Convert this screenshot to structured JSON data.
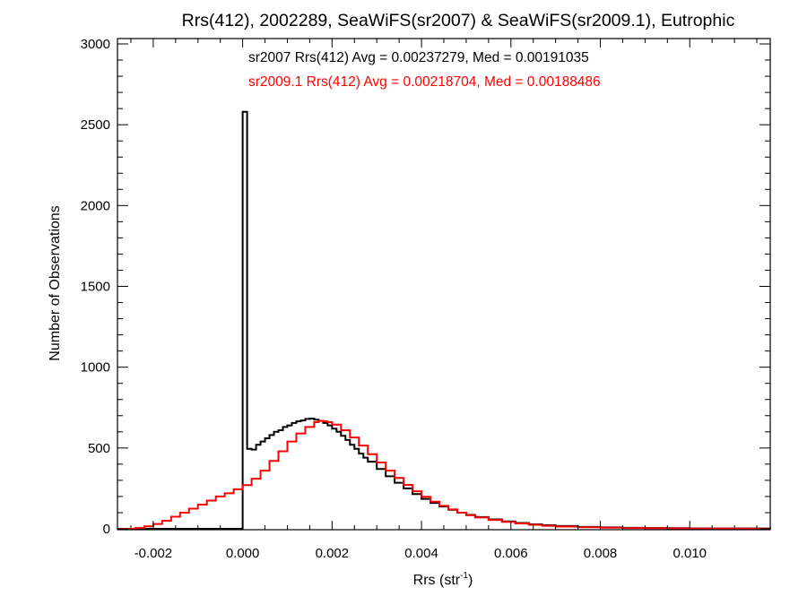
{
  "chart_data": {
    "type": "histogram-step",
    "title": "Rrs(412), 2002289, SeaWiFS(sr2007) & SeaWiFS(sr2009.1), Eutrophic",
    "xlabel": "Rrs (str",
    "xlabel_sup": "-1",
    "xlabel_close": ")",
    "ylabel": "Number of Observations",
    "xlim": [
      -0.0028,
      0.0118
    ],
    "ylim": [
      0,
      3000
    ],
    "x_ticks": [
      -0.002,
      0.0,
      0.002,
      0.004,
      0.006,
      0.008,
      0.01
    ],
    "x_tick_labels": [
      "-0.002",
      "0.000",
      "0.002",
      "0.004",
      "0.006",
      "0.008",
      "0.010"
    ],
    "y_ticks": [
      0,
      500,
      1000,
      1500,
      2000,
      2500,
      3000
    ],
    "y_tick_labels": [
      "0",
      "500",
      "1000",
      "1500",
      "2000",
      "2500",
      "3000"
    ],
    "grid": false,
    "annotations": [
      {
        "text": "sr2007 Rrs(412) Avg = 0.00237279, Med = 0.00191035",
        "color": "#000000"
      },
      {
        "text": "sr2009.1 Rrs(412) Avg = 0.00218704, Med = 0.00188486",
        "color": "#ff0000"
      }
    ],
    "series": [
      {
        "name": "sr2007",
        "color": "#000000",
        "points": [
          [
            -0.0028,
            0
          ],
          [
            -0.0001,
            0
          ],
          [
            0.0,
            2580
          ],
          [
            0.0001,
            495
          ],
          [
            0.0002,
            490
          ],
          [
            0.0003,
            520
          ],
          [
            0.0004,
            540
          ],
          [
            0.0005,
            560
          ],
          [
            0.0006,
            580
          ],
          [
            0.0007,
            600
          ],
          [
            0.0008,
            610
          ],
          [
            0.0009,
            630
          ],
          [
            0.001,
            640
          ],
          [
            0.0011,
            655
          ],
          [
            0.0012,
            665
          ],
          [
            0.0013,
            670
          ],
          [
            0.0014,
            680
          ],
          [
            0.0015,
            682
          ],
          [
            0.0016,
            675
          ],
          [
            0.0017,
            668
          ],
          [
            0.0018,
            655
          ],
          [
            0.0019,
            640
          ],
          [
            0.002,
            620
          ],
          [
            0.0021,
            600
          ],
          [
            0.0022,
            575
          ],
          [
            0.0023,
            550
          ],
          [
            0.0024,
            520
          ],
          [
            0.0025,
            495
          ],
          [
            0.0026,
            465
          ],
          [
            0.0027,
            440
          ],
          [
            0.0028,
            415
          ],
          [
            0.003,
            370
          ],
          [
            0.0032,
            325
          ],
          [
            0.0034,
            285
          ],
          [
            0.0036,
            250
          ],
          [
            0.0038,
            215
          ],
          [
            0.004,
            185
          ],
          [
            0.0042,
            160
          ],
          [
            0.0044,
            138
          ],
          [
            0.0046,
            118
          ],
          [
            0.0048,
            100
          ],
          [
            0.005,
            86
          ],
          [
            0.0052,
            73
          ],
          [
            0.0055,
            58
          ],
          [
            0.0058,
            46
          ],
          [
            0.0061,
            36
          ],
          [
            0.0064,
            28
          ],
          [
            0.0067,
            22
          ],
          [
            0.007,
            17
          ],
          [
            0.0075,
            12
          ],
          [
            0.008,
            9
          ],
          [
            0.0085,
            6
          ],
          [
            0.009,
            5
          ],
          [
            0.0095,
            4
          ],
          [
            0.01,
            3
          ],
          [
            0.0105,
            2
          ],
          [
            0.011,
            2
          ],
          [
            0.0118,
            1
          ]
        ]
      },
      {
        "name": "sr2009.1",
        "color": "#ff0000",
        "points": [
          [
            -0.0028,
            0
          ],
          [
            -0.0024,
            5
          ],
          [
            -0.0022,
            15
          ],
          [
            -0.002,
            30
          ],
          [
            -0.0018,
            50
          ],
          [
            -0.0016,
            75
          ],
          [
            -0.0014,
            100
          ],
          [
            -0.0012,
            125
          ],
          [
            -0.001,
            150
          ],
          [
            -0.0008,
            175
          ],
          [
            -0.0006,
            200
          ],
          [
            -0.0004,
            220
          ],
          [
            -0.0002,
            245
          ],
          [
            0.0,
            270
          ],
          [
            0.0002,
            310
          ],
          [
            0.0004,
            360
          ],
          [
            0.0006,
            420
          ],
          [
            0.0008,
            480
          ],
          [
            0.001,
            540
          ],
          [
            0.0012,
            590
          ],
          [
            0.0014,
            630
          ],
          [
            0.0016,
            660
          ],
          [
            0.0017,
            668
          ],
          [
            0.0018,
            665
          ],
          [
            0.0019,
            660
          ],
          [
            0.002,
            645
          ],
          [
            0.0022,
            610
          ],
          [
            0.0024,
            565
          ],
          [
            0.0026,
            515
          ],
          [
            0.0028,
            462
          ],
          [
            0.003,
            410
          ],
          [
            0.0032,
            360
          ],
          [
            0.0034,
            315
          ],
          [
            0.0036,
            272
          ],
          [
            0.0038,
            232
          ],
          [
            0.004,
            198
          ],
          [
            0.0042,
            168
          ],
          [
            0.0044,
            142
          ],
          [
            0.0046,
            120
          ],
          [
            0.0048,
            100
          ],
          [
            0.005,
            84
          ],
          [
            0.0052,
            70
          ],
          [
            0.0055,
            55
          ],
          [
            0.0058,
            43
          ],
          [
            0.0061,
            33
          ],
          [
            0.0064,
            25
          ],
          [
            0.0067,
            19
          ],
          [
            0.007,
            14
          ],
          [
            0.0075,
            10
          ],
          [
            0.008,
            7
          ],
          [
            0.0085,
            5
          ],
          [
            0.009,
            4
          ],
          [
            0.0095,
            3
          ],
          [
            0.01,
            2
          ],
          [
            0.0105,
            2
          ],
          [
            0.011,
            1
          ],
          [
            0.0118,
            1
          ]
        ]
      }
    ]
  }
}
